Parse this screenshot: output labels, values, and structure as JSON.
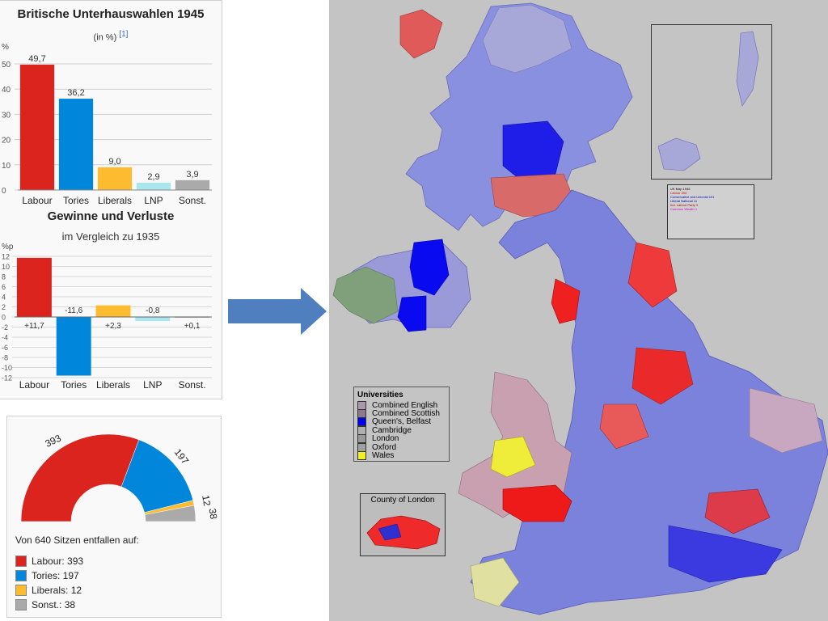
{
  "chart_data": [
    {
      "type": "bar",
      "title": "Britische Unterhauswahlen 1945",
      "subtitle": "(in %)",
      "reference": "[1]",
      "ylabel": "%",
      "ylim": [
        0,
        50
      ],
      "yticks": [
        "0",
        "10",
        "20",
        "30",
        "40",
        "50"
      ],
      "categories": [
        "Labour",
        "Tories",
        "Liberals",
        "LNP",
        "Sonst."
      ],
      "values": [
        49.7,
        36.2,
        9.0,
        2.9,
        3.9
      ],
      "value_labels": [
        "49,7",
        "36,2",
        "9,0",
        "2,9",
        "3,9"
      ],
      "colors": [
        "#dc241f",
        "#0087dc",
        "#fdbb30",
        "#aae6ee",
        "#aaaaaa"
      ]
    },
    {
      "type": "bar",
      "title": "Gewinne und Verluste",
      "subtitle": "im Vergleich zu 1935",
      "ylabel": "%p",
      "ylim": [
        -12,
        12
      ],
      "yticks": [
        "12",
        "10",
        "8",
        "6",
        "4",
        "2",
        "0",
        "-2",
        "-4",
        "-6",
        "-8",
        "-10",
        "-12"
      ],
      "categories": [
        "Labour",
        "Tories",
        "Liberals",
        "LNP",
        "Sonst."
      ],
      "values": [
        11.7,
        -11.6,
        2.3,
        -0.8,
        0.1
      ],
      "value_labels": [
        "+11,7",
        "-11,6",
        "+2,3",
        "-0,8",
        "+0,1"
      ],
      "colors": [
        "#dc241f",
        "#0087dc",
        "#fdbb30",
        "#aae6ee",
        "#aaaaaa"
      ]
    },
    {
      "type": "pie",
      "subtype": "semicircle",
      "total": 640,
      "categories": [
        "Labour",
        "Tories",
        "Liberals",
        "Sonst."
      ],
      "values": [
        393,
        197,
        12,
        38
      ],
      "value_labels": [
        "393",
        "197",
        "12",
        "38"
      ],
      "colors": [
        "#dc241f",
        "#0087dc",
        "#fdbb30",
        "#aaaaaa"
      ]
    }
  ],
  "seats": {
    "caption": "Von 640 Sitzen entfallen auf:",
    "legend": [
      "Labour: 393",
      "Tories: 197",
      "Liberals: 12",
      "Sonst.: 38"
    ]
  },
  "map": {
    "universities_title": "Universities",
    "universities": [
      {
        "label": "Combined English",
        "color": "#a89aa8"
      },
      {
        "label": "Combined Scottish",
        "color": "#8a7a8a"
      },
      {
        "label": "Queen's, Belfast",
        "color": "#0000ee"
      },
      {
        "label": "Cambridge",
        "color": "#b0b0b0"
      },
      {
        "label": "London",
        "color": "#9a9a9a"
      },
      {
        "label": "Oxford",
        "color": "#a0a0a0"
      },
      {
        "label": "Wales",
        "color": "#f0f020"
      }
    ],
    "london_title": "County of London",
    "key_lines": [
      "UK Map 1945",
      "Labour 394",
      "Conservative and Unionist 191",
      "Liberal National 11",
      "Ind. Labour Party 3",
      "Common Wealth 1"
    ]
  },
  "colors": {
    "labour": "#dc241f",
    "tories": "#0087dc",
    "liberals": "#fdbb30",
    "lnp": "#aae6ee",
    "other": "#aaaaaa",
    "arrow": "#4f7fbf"
  }
}
